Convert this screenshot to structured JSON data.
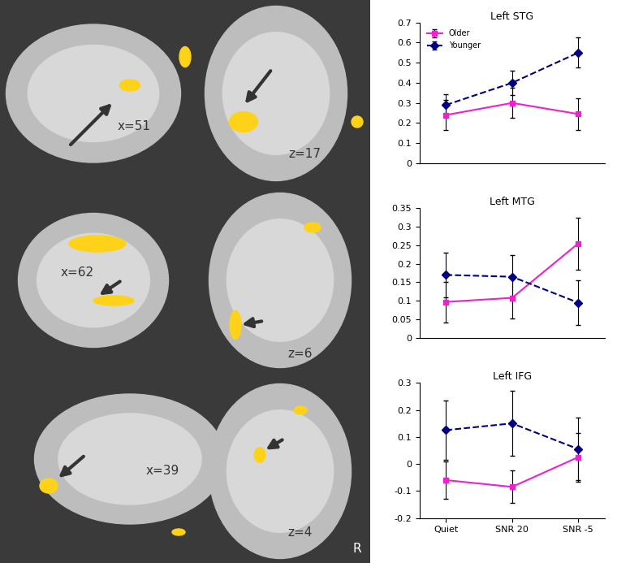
{
  "chart_data": [
    {
      "type": "line",
      "title": "Left STG",
      "categories": [
        null,
        null,
        null
      ],
      "ylim": [
        0,
        0.7
      ],
      "yticks": [
        0,
        0.1,
        0.2,
        0.3,
        0.4,
        0.5,
        0.6,
        0.7
      ],
      "legend": "upper left",
      "series": [
        {
          "name": "Older",
          "color": "#ee22cc",
          "marker": "square",
          "line_style": "solid",
          "values": [
            0.24,
            0.3,
            0.245
          ],
          "errors": [
            0.075,
            0.075,
            0.08
          ]
        },
        {
          "name": "Younger",
          "color": "#000080",
          "marker": "diamond",
          "line_style": "dashed",
          "values": [
            0.29,
            0.4,
            0.55
          ],
          "errors": [
            0.055,
            0.06,
            0.075
          ]
        }
      ]
    },
    {
      "type": "line",
      "title": "Left MTG",
      "categories": [
        null,
        null,
        null
      ],
      "ylim": [
        0,
        0.35
      ],
      "yticks": [
        0,
        0.05,
        0.1,
        0.15,
        0.2,
        0.25,
        0.3,
        0.35
      ],
      "series": [
        {
          "name": "Older",
          "color": "#ee22cc",
          "marker": "square",
          "line_style": "solid",
          "values": [
            0.097,
            0.108,
            0.255
          ],
          "errors": [
            0.055,
            0.055,
            0.07
          ]
        },
        {
          "name": "Younger",
          "color": "#000080",
          "marker": "diamond",
          "line_style": "dashed",
          "values": [
            0.17,
            0.165,
            0.095
          ],
          "errors": [
            0.06,
            0.058,
            0.06
          ]
        }
      ]
    },
    {
      "type": "line",
      "title": "Left IFG",
      "categories": [
        "Quiet",
        "SNR 20",
        "SNR -5"
      ],
      "ylim": [
        -0.2,
        0.3
      ],
      "yticks": [
        -0.2,
        -0.1,
        0,
        0.1,
        0.2,
        0.3
      ],
      "series": [
        {
          "name": "Older",
          "color": "#ee22cc",
          "marker": "square",
          "line_style": "solid",
          "values": [
            -0.06,
            -0.085,
            0.025
          ],
          "errors": [
            0.07,
            0.06,
            0.09
          ]
        },
        {
          "name": "Younger",
          "color": "#000080",
          "marker": "diamond",
          "line_style": "dashed",
          "values": [
            0.125,
            0.15,
            0.055
          ],
          "errors": [
            0.11,
            0.12,
            0.115
          ]
        }
      ]
    }
  ],
  "brain_slices": [
    "x=51",
    "z=17",
    "x=62",
    "z=6",
    "x=39",
    "z=4"
  ],
  "orientation_label": "R"
}
